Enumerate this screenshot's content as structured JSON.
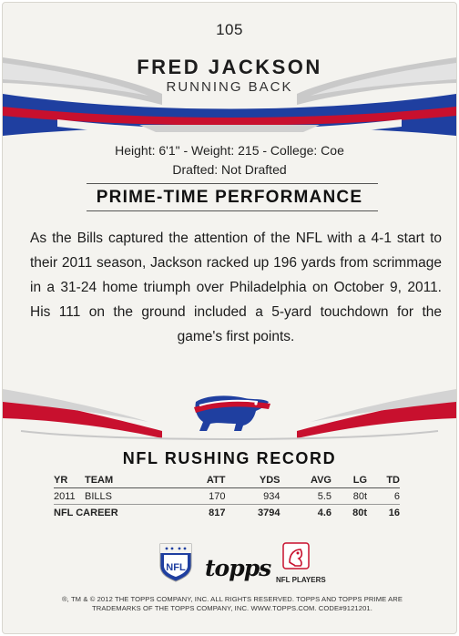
{
  "card": {
    "number": "105",
    "name": "FRED JACKSON",
    "position": "RUNNING BACK"
  },
  "bio": {
    "line1": "Height: 6'1\" - Weight: 215 - College: Coe",
    "line2": "Drafted: Not Drafted"
  },
  "highlight": {
    "heading": "PRIME-TIME PERFORMANCE",
    "text": "As the Bills captured the attention of the NFL with a 4-1 start to their 2011 season, Jackson racked up 196 yards from scrimmage in a 31-24 home triumph over Philadelphia on October 9, 2011. His 111 on the ground included a 5-yard touchdown for the game's first points."
  },
  "record": {
    "heading": "NFL RUSHING RECORD",
    "columns": [
      "YR",
      "TEAM",
      "ATT",
      "YDS",
      "AVG",
      "LG",
      "TD"
    ],
    "rows": [
      [
        "2011",
        "BILLS",
        "170",
        "934",
        "5.5",
        "80t",
        "6"
      ]
    ],
    "career": [
      "NFL CAREER",
      "817",
      "3794",
      "4.6",
      "80t",
      "16"
    ]
  },
  "logos": {
    "nfl": "NFL",
    "topps": "topps",
    "players": "NFL PLAYERS"
  },
  "legal": {
    "line1": "®, TM & © 2012 THE TOPPS COMPANY, INC. ALL RIGHTS RESERVED. TOPPS AND TOPPS PRIME ARE",
    "line2": "TRADEMARKS OF THE TOPPS COMPANY, INC. WWW.TOPPS.COM. CODE#9121201."
  },
  "colors": {
    "blue": "#1f3fa0",
    "red": "#c8102e",
    "silver": "#b9b9b9"
  },
  "icons": {
    "team_logo": "buffalo-bills-logo",
    "nfl_shield": "nfl-shield-logo",
    "nflpa": "nflpa-logo"
  }
}
